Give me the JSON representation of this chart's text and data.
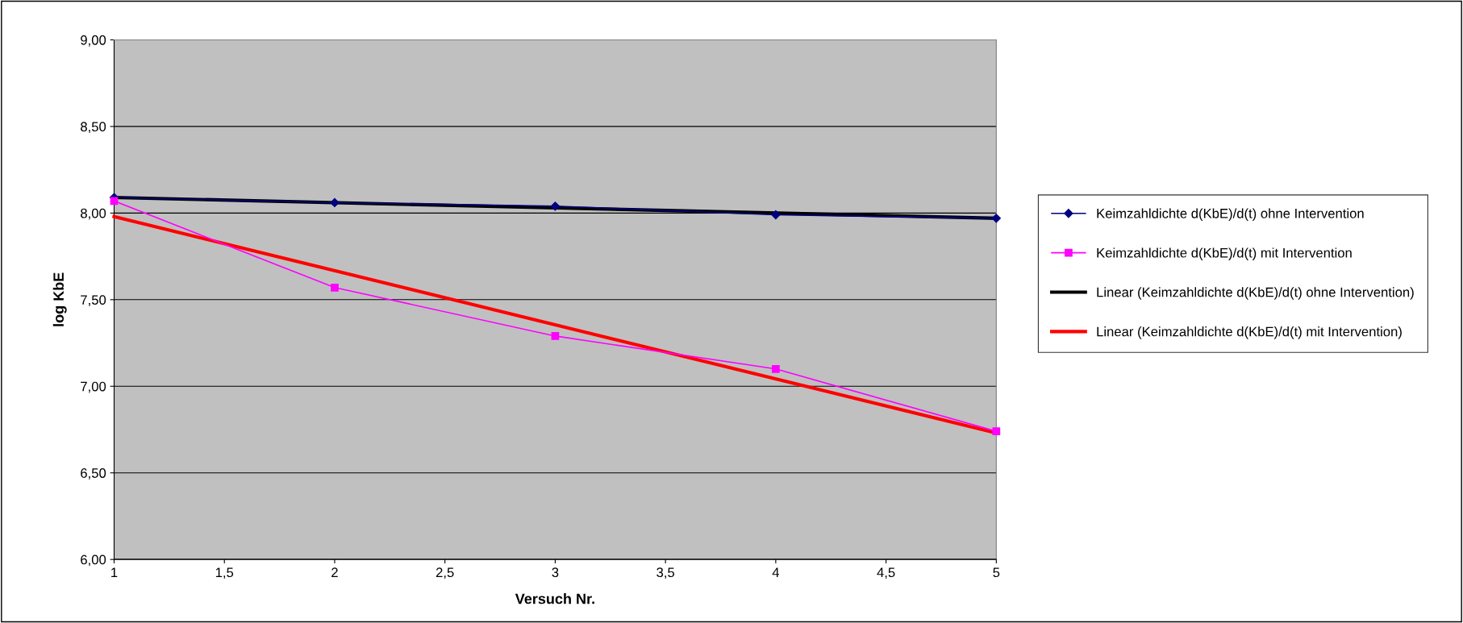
{
  "chart_data": {
    "type": "line",
    "xlabel": "Versuch Nr.",
    "ylabel": "log KbE",
    "xlim": [
      1,
      5
    ],
    "xticks": [
      1,
      {
        "value": 1.5,
        "label": "1,5"
      },
      2,
      {
        "value": 2.5,
        "label": "2,5"
      },
      3,
      {
        "value": 3.5,
        "label": "3,5"
      },
      4,
      {
        "value": 4.5,
        "label": "4,5"
      },
      5
    ],
    "ylim": [
      6,
      9
    ],
    "yticks": [
      {
        "value": 6,
        "label": "6,00"
      },
      {
        "value": 6.5,
        "label": "6,50"
      },
      {
        "value": 7,
        "label": "7,00"
      },
      {
        "value": 7.5,
        "label": "7,50"
      },
      {
        "value": 8,
        "label": "8,00"
      },
      {
        "value": 8.5,
        "label": "8,50"
      },
      {
        "value": 9,
        "label": "9,00"
      }
    ],
    "grid": "y",
    "legend": "right",
    "series": [
      {
        "name": "Keimzahldichte d(KbE)/d(t) ohne Intervention",
        "color": "#000080",
        "marker": "diamond",
        "x": [
          1,
          2,
          3,
          4,
          5
        ],
        "values": [
          8.09,
          8.06,
          8.04,
          7.99,
          7.97
        ]
      },
      {
        "name": "Keimzahldichte d(KbE)/d(t) mit Intervention",
        "color": "#ff00ff",
        "marker": "square",
        "x": [
          1,
          2,
          3,
          4,
          5
        ],
        "values": [
          8.07,
          7.57,
          7.29,
          7.1,
          6.74
        ]
      },
      {
        "name": "Linear (Keimzahldichte d(KbE)/d(t) ohne Intervention)",
        "color": "#000000",
        "marker": "none",
        "x": [
          1,
          5
        ],
        "values": [
          8.09,
          7.97
        ]
      },
      {
        "name": "Linear (Keimzahldichte d(KbE)/d(t) mit Intervention)",
        "color": "#ff0000",
        "marker": "none",
        "x": [
          1,
          5
        ],
        "values": [
          7.98,
          6.73
        ]
      }
    ]
  }
}
